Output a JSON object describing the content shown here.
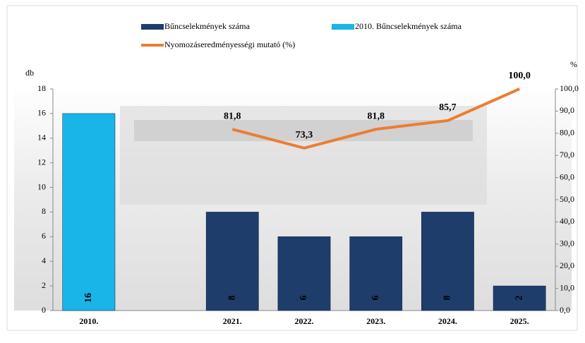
{
  "chart_data": {
    "type": "bar",
    "categories": [
      "2010.",
      null,
      "2021.",
      "2022.",
      "2023.",
      "2024.",
      "2025."
    ],
    "series": [
      {
        "name": "Bűncselekmények száma",
        "color": "#1f3d6b",
        "values": [
          null,
          null,
          8,
          6,
          6,
          8,
          2
        ]
      },
      {
        "name": "2010. Bűncselekmények száma",
        "color": "#19b4e8",
        "values": [
          16,
          null,
          null,
          null,
          null,
          null,
          null
        ]
      },
      {
        "name": "Nyomozáseredményességi mutató (%)",
        "color": "#ed7d31",
        "type": "line",
        "axis": "y2",
        "values": [
          null,
          null,
          81.8,
          73.3,
          81.8,
          85.7,
          100.0
        ],
        "value_labels": [
          null,
          null,
          "81,8",
          "73,3",
          "81,8",
          "85,7",
          "100,0"
        ]
      }
    ],
    "ylabel": "db",
    "y2label": "%",
    "ylim": [
      0,
      18
    ],
    "yticks": [
      0,
      2,
      4,
      6,
      8,
      10,
      12,
      14,
      16,
      18
    ],
    "y2lim": [
      0,
      100
    ],
    "y2ticks": [
      {
        "value": 0,
        "label": "0,0"
      },
      {
        "value": 10,
        "label": "10,0"
      },
      {
        "value": 20,
        "label": "20,0"
      },
      {
        "value": 30,
        "label": "30,0"
      },
      {
        "value": 40,
        "label": "40,0"
      },
      {
        "value": 50,
        "label": "50,0"
      },
      {
        "value": 60,
        "label": "60,0"
      },
      {
        "value": 70,
        "label": "70,0"
      },
      {
        "value": 80,
        "label": "80,0"
      },
      {
        "value": 90,
        "label": "90,0"
      },
      {
        "value": 100,
        "label": "100,0"
      }
    ],
    "grid": false
  }
}
